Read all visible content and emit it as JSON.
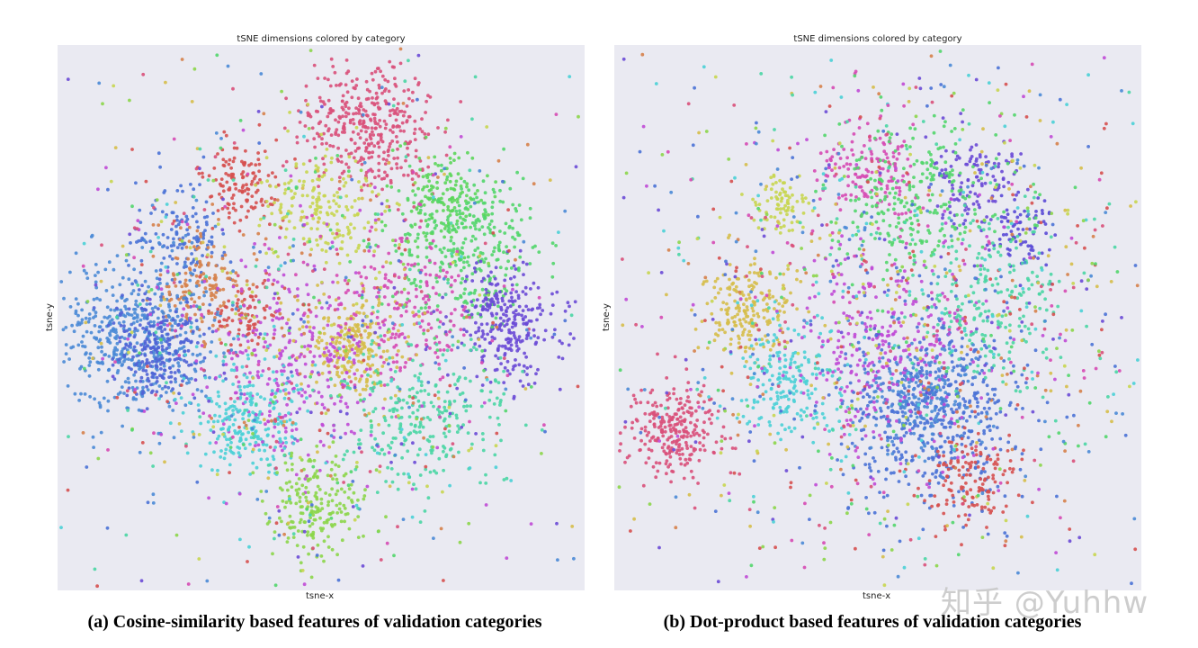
{
  "chart_data": [
    {
      "type": "scatter",
      "title": "tSNE dimensions colored by category",
      "xlabel": "tsne-x",
      "ylabel": "tsne-y",
      "caption": "(a) Cosine-similarity based features of validation categories",
      "grid": false,
      "background": "#eaeaf2",
      "clusters": [
        {
          "cx": 0.59,
          "cy": 0.15,
          "spread": 0.07,
          "n": 380,
          "color": "#d9507a"
        },
        {
          "cx": 0.35,
          "cy": 0.25,
          "spread": 0.04,
          "n": 130,
          "color": "#d6504f"
        },
        {
          "cx": 0.5,
          "cy": 0.3,
          "spread": 0.055,
          "n": 180,
          "color": "#c8d650"
        },
        {
          "cx": 0.73,
          "cy": 0.28,
          "spread": 0.05,
          "n": 150,
          "color": "#5cd65a"
        },
        {
          "cx": 0.78,
          "cy": 0.38,
          "spread": 0.08,
          "n": 320,
          "color": "#52d66c"
        },
        {
          "cx": 0.24,
          "cy": 0.36,
          "spread": 0.05,
          "n": 130,
          "color": "#4a72d6"
        },
        {
          "cx": 0.27,
          "cy": 0.44,
          "spread": 0.05,
          "n": 140,
          "color": "#d6814a"
        },
        {
          "cx": 0.15,
          "cy": 0.54,
          "spread": 0.08,
          "n": 500,
          "color": "#4a8ad6"
        },
        {
          "cx": 0.19,
          "cy": 0.56,
          "spread": 0.05,
          "n": 220,
          "color": "#5063d6"
        },
        {
          "cx": 0.36,
          "cy": 0.5,
          "spread": 0.035,
          "n": 80,
          "color": "#d6504f"
        },
        {
          "cx": 0.56,
          "cy": 0.55,
          "spread": 0.05,
          "n": 240,
          "color": "#d6be4a"
        },
        {
          "cx": 0.85,
          "cy": 0.51,
          "spread": 0.06,
          "n": 280,
          "color": "#6a4ad6"
        },
        {
          "cx": 0.44,
          "cy": 0.58,
          "spread": 0.09,
          "n": 280,
          "color": "#c04ad6"
        },
        {
          "cx": 0.66,
          "cy": 0.48,
          "spread": 0.08,
          "n": 200,
          "color": "#d64ab4"
        },
        {
          "cx": 0.36,
          "cy": 0.69,
          "spread": 0.055,
          "n": 240,
          "color": "#4ad0d6"
        },
        {
          "cx": 0.7,
          "cy": 0.68,
          "spread": 0.08,
          "n": 260,
          "color": "#4ad6a4"
        },
        {
          "cx": 0.49,
          "cy": 0.84,
          "spread": 0.05,
          "n": 200,
          "color": "#8cd64a"
        },
        {
          "cx": 0.47,
          "cy": 0.52,
          "spread": 0.28,
          "n": 900,
          "color": "mixed"
        }
      ]
    },
    {
      "type": "scatter",
      "title": "tSNE dimensions colored by category",
      "xlabel": "tsne-x",
      "ylabel": "tsne-y",
      "caption": "(b) Dot-product based features of validation categories",
      "grid": false,
      "background": "#eaeaf2",
      "clusters": [
        {
          "cx": 0.11,
          "cy": 0.71,
          "spread": 0.045,
          "n": 260,
          "color": "#d9507a"
        },
        {
          "cx": 0.25,
          "cy": 0.49,
          "spread": 0.05,
          "n": 200,
          "color": "#d6be4a"
        },
        {
          "cx": 0.33,
          "cy": 0.62,
          "spread": 0.06,
          "n": 200,
          "color": "#4ad0d6"
        },
        {
          "cx": 0.32,
          "cy": 0.29,
          "spread": 0.03,
          "n": 80,
          "color": "#c8d650"
        },
        {
          "cx": 0.48,
          "cy": 0.23,
          "spread": 0.05,
          "n": 150,
          "color": "#d64ab4"
        },
        {
          "cx": 0.69,
          "cy": 0.25,
          "spread": 0.05,
          "n": 120,
          "color": "#6a4ad6"
        },
        {
          "cx": 0.77,
          "cy": 0.34,
          "spread": 0.04,
          "n": 80,
          "color": "#5a4ad6"
        },
        {
          "cx": 0.57,
          "cy": 0.28,
          "spread": 0.08,
          "n": 240,
          "color": "#52d66c"
        },
        {
          "cx": 0.61,
          "cy": 0.67,
          "spread": 0.09,
          "n": 500,
          "color": "#4a72d6"
        },
        {
          "cx": 0.58,
          "cy": 0.65,
          "spread": 0.05,
          "n": 200,
          "color": "#4a8ad6"
        },
        {
          "cx": 0.68,
          "cy": 0.8,
          "spread": 0.05,
          "n": 140,
          "color": "#d6504f"
        },
        {
          "cx": 0.52,
          "cy": 0.56,
          "spread": 0.1,
          "n": 260,
          "color": "#c04ad6"
        },
        {
          "cx": 0.72,
          "cy": 0.46,
          "spread": 0.08,
          "n": 200,
          "color": "#4ad6a4"
        },
        {
          "cx": 0.55,
          "cy": 0.48,
          "spread": 0.3,
          "n": 1300,
          "color": "mixed"
        }
      ]
    }
  ],
  "palette": [
    "#d9507a",
    "#d6504f",
    "#d6814a",
    "#d6be4a",
    "#c8d650",
    "#8cd64a",
    "#52d66c",
    "#4ad6a4",
    "#4ad0d6",
    "#4a8ad6",
    "#4a72d6",
    "#6a4ad6",
    "#c04ad6",
    "#d64ab4"
  ],
  "watermark": "知乎 @Yuhhw"
}
